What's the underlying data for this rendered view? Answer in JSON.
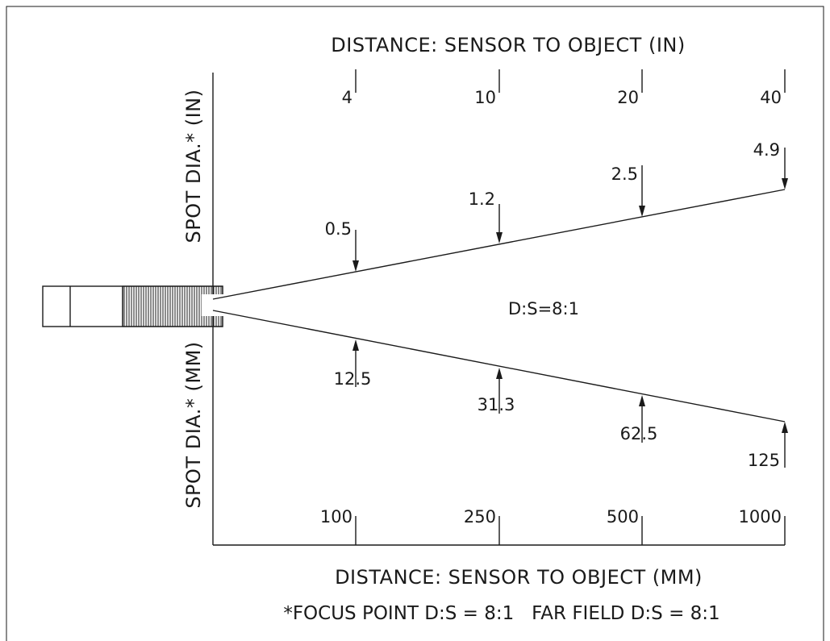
{
  "diagram": {
    "top_axis_title": "DISTANCE: SENSOR TO OBJECT (IN)",
    "bottom_axis_title": "DISTANCE: SENSOR TO OBJECT (MM)",
    "left_upper_label": "SPOT DIA.* (IN)",
    "left_lower_label": "SPOT DIA.* (MM)",
    "center_label": "D:S=8:1",
    "footnote": "*FOCUS POINT D:S = 8:1   FAR FIELD D:S = 8:1",
    "distances_in": [
      "4",
      "10",
      "20",
      "40"
    ],
    "distances_mm": [
      "100",
      "250",
      "500",
      "1000"
    ],
    "spot_in": [
      "0.5",
      "1.2",
      "2.5",
      "4.9"
    ],
    "spot_mm": [
      "12.5",
      "31.3",
      "62.5",
      "125"
    ]
  }
}
